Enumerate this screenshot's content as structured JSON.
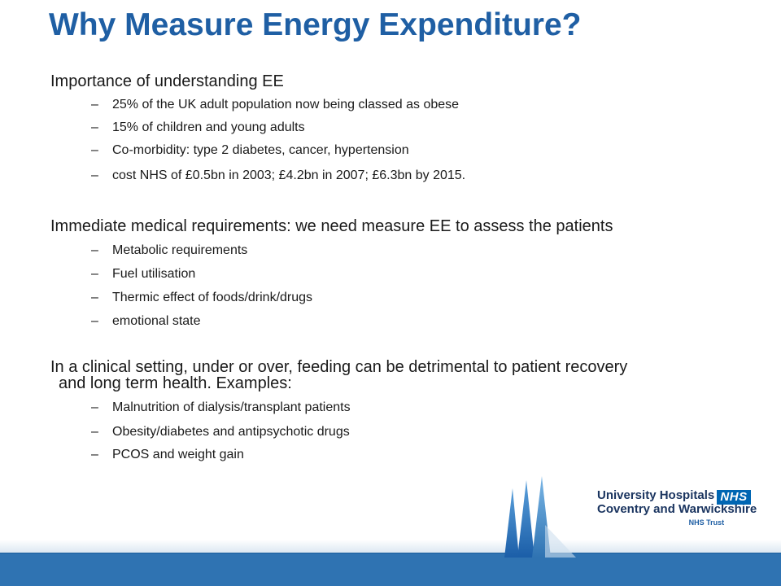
{
  "slide": {
    "title": "Why Measure Energy Expenditure?",
    "sections": [
      {
        "heading": "Importance of understanding EE",
        "items": [
          "25% of the UK adult population now being classed as obese",
          "15% of children and young adults",
          "Co-morbidity: type 2 diabetes, cancer, hypertension",
          "cost NHS of £0.5bn in 2003; £4.2bn in 2007; £6.3bn by 2015."
        ]
      },
      {
        "heading": "Immediate medical requirements: we need measure EE to assess the patients",
        "items": [
          "Metabolic requirements",
          "Fuel utilisation",
          "Thermic effect of foods/drink/drugs",
          "emotional state"
        ]
      },
      {
        "heading_line1": "In a clinical setting, under or over, feeding can be detrimental to patient recovery",
        "heading_line2": "and long term health.  Examples:",
        "items": [
          "Malnutrition of dialysis/transplant patients",
          "Obesity/diabetes and antipsychotic drugs",
          "PCOS and weight gain"
        ]
      }
    ],
    "dash": "–"
  },
  "logo": {
    "line1": "University Hospitals",
    "line2": "Coventry and Warwickshire",
    "line3": "NHS Trust",
    "badge": "NHS",
    "colors": {
      "brand_blue": "#0066b3",
      "title_blue": "#1f5fa4",
      "band_blue": "#2f73b2"
    }
  }
}
